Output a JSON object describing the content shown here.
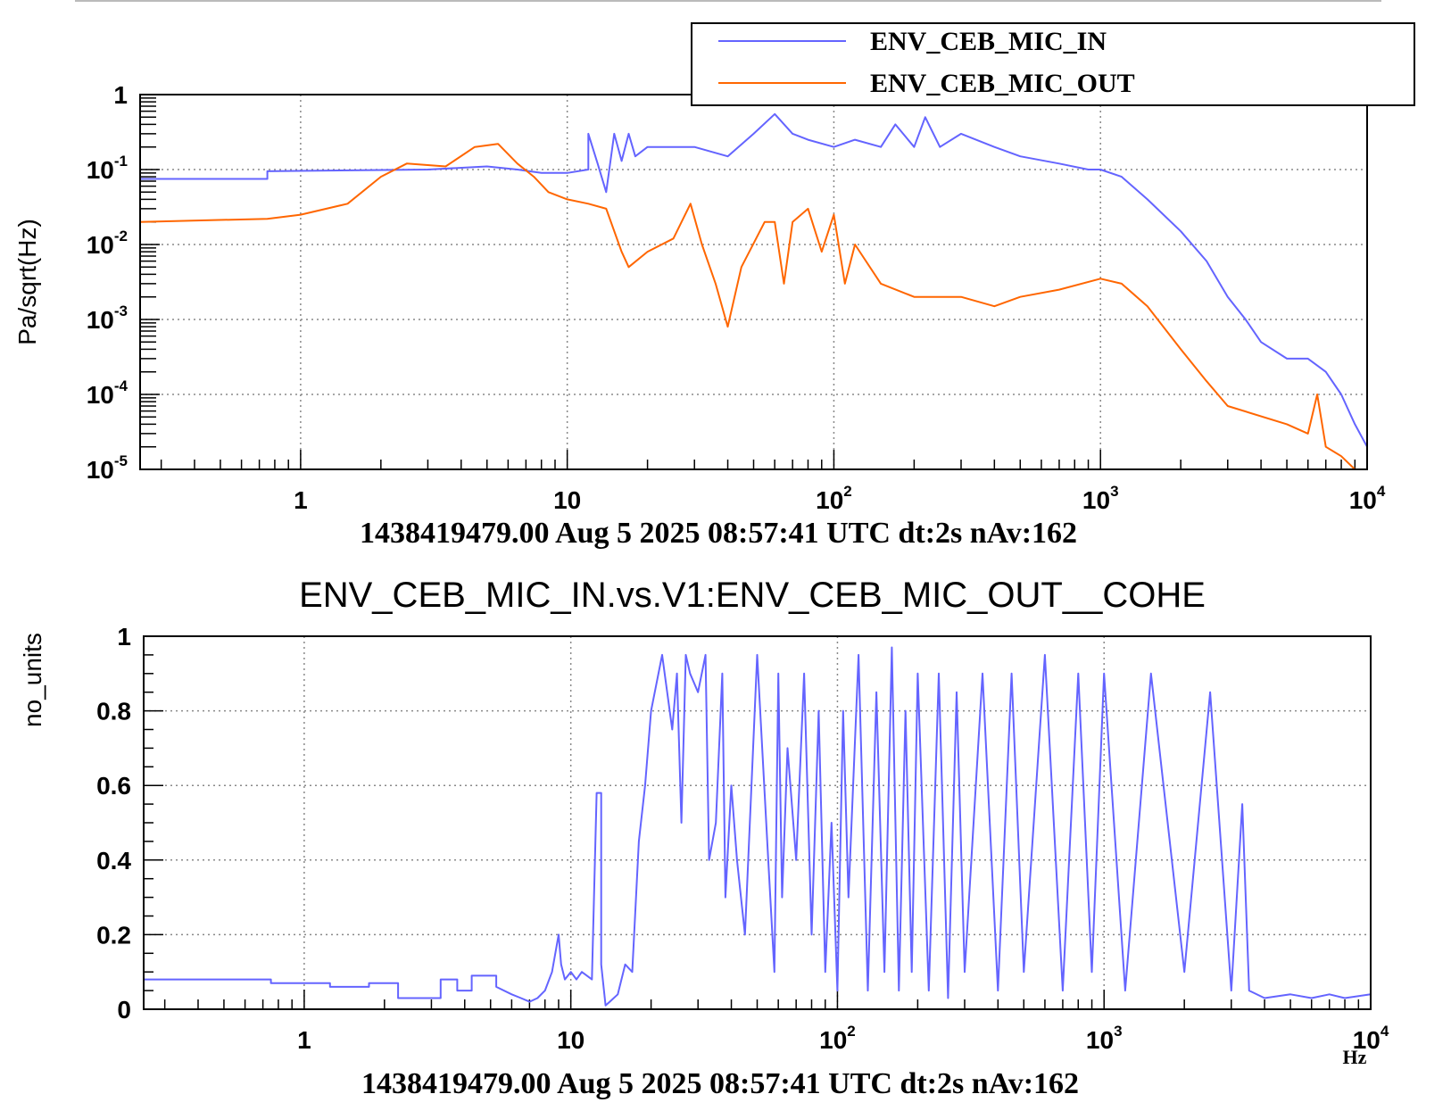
{
  "colors": {
    "series_in": "#6464ff",
    "series_out": "#ff6600",
    "grid": "#888888",
    "axis": "#000000"
  },
  "chart_data": [
    {
      "type": "line",
      "xscale": "log",
      "yscale": "log",
      "xlim": [
        0.25,
        10000
      ],
      "ylim": [
        1e-05,
        1
      ],
      "grid": true,
      "legend_position": "top-right",
      "ylabel": "Pa/sqrt(Hz)",
      "xtick_labels": [
        {
          "value": 1,
          "base": "1",
          "exp": ""
        },
        {
          "value": 10,
          "base": "10",
          "exp": ""
        },
        {
          "value": 100,
          "base": "10",
          "exp": "2"
        },
        {
          "value": 1000,
          "base": "10",
          "exp": "3"
        },
        {
          "value": 10000,
          "base": "10",
          "exp": "4"
        }
      ],
      "ytick_labels": [
        {
          "value": 1,
          "base": "1",
          "exp": ""
        },
        {
          "value": 0.1,
          "base": "10",
          "exp": "-1"
        },
        {
          "value": 0.01,
          "base": "10",
          "exp": "-2"
        },
        {
          "value": 0.001,
          "base": "10",
          "exp": "-3"
        },
        {
          "value": 0.0001,
          "base": "10",
          "exp": "-4"
        },
        {
          "value": 1e-05,
          "base": "10",
          "exp": "-5"
        }
      ],
      "footer": "1438419479.00 Aug 5 2025 08:57:41 UTC dt:2s nAv:162",
      "series": [
        {
          "name": "ENV_CEB_MIC_IN",
          "color": "#6464ff",
          "x": [
            0.25,
            0.75,
            0.75,
            3,
            5,
            6.5,
            8,
            10,
            12,
            12,
            13,
            14,
            15,
            16,
            17,
            18,
            20,
            25,
            30,
            40,
            50,
            60,
            70,
            80,
            100,
            120,
            150,
            170,
            200,
            220,
            250,
            300,
            400,
            500,
            700,
            900,
            1000,
            1200,
            1500,
            2000,
            2500,
            3000,
            3500,
            4000,
            5000,
            6000,
            7000,
            8000,
            9000,
            10000
          ],
          "y": [
            0.075,
            0.075,
            0.095,
            0.1,
            0.11,
            0.1,
            0.09,
            0.09,
            0.1,
            0.3,
            0.12,
            0.05,
            0.3,
            0.13,
            0.3,
            0.15,
            0.2,
            0.2,
            0.2,
            0.15,
            0.3,
            0.55,
            0.3,
            0.25,
            0.2,
            0.25,
            0.2,
            0.4,
            0.2,
            0.5,
            0.2,
            0.3,
            0.2,
            0.15,
            0.12,
            0.1,
            0.1,
            0.08,
            0.04,
            0.015,
            0.006,
            0.002,
            0.001,
            0.0005,
            0.0003,
            0.0003,
            0.0002,
            0.0001,
            4e-05,
            2e-05
          ]
        },
        {
          "name": "ENV_CEB_MIC_OUT",
          "color": "#ff6600",
          "x": [
            0.25,
            0.75,
            1,
            1.5,
            2,
            2.5,
            3.5,
            4.5,
            5.5,
            6.5,
            7.5,
            8.5,
            10,
            12,
            14,
            16,
            17,
            20,
            25,
            29,
            32,
            36,
            40,
            45,
            55,
            60,
            65,
            70,
            80,
            90,
            100,
            110,
            120,
            150,
            200,
            300,
            400,
            500,
            700,
            1000,
            1200,
            1500,
            2000,
            2500,
            3000,
            5000,
            6000,
            6500,
            7000,
            8000,
            9000
          ],
          "y": [
            0.02,
            0.022,
            0.025,
            0.035,
            0.08,
            0.12,
            0.11,
            0.2,
            0.22,
            0.12,
            0.08,
            0.05,
            0.04,
            0.035,
            0.03,
            0.008,
            0.005,
            0.008,
            0.012,
            0.035,
            0.01,
            0.003,
            0.0008,
            0.005,
            0.02,
            0.02,
            0.003,
            0.02,
            0.03,
            0.008,
            0.025,
            0.003,
            0.01,
            0.003,
            0.002,
            0.002,
            0.0015,
            0.002,
            0.0025,
            0.0035,
            0.003,
            0.0015,
            0.0004,
            0.00015,
            7e-05,
            4e-05,
            3e-05,
            0.0001,
            2e-05,
            1.5e-05,
            1e-05
          ]
        }
      ]
    },
    {
      "type": "line",
      "xscale": "log",
      "yscale": "linear",
      "xlim": [
        0.25,
        10000
      ],
      "ylim": [
        0,
        1
      ],
      "grid": true,
      "title": "ENV_CEB_MIC_IN.vs.V1:ENV_CEB_MIC_OUT__COHE",
      "ylabel": "no_units",
      "xunit": "Hz",
      "xtick_labels": [
        {
          "value": 1,
          "base": "1",
          "exp": ""
        },
        {
          "value": 10,
          "base": "10",
          "exp": ""
        },
        {
          "value": 100,
          "base": "10",
          "exp": "2"
        },
        {
          "value": 1000,
          "base": "10",
          "exp": "3"
        },
        {
          "value": 10000,
          "base": "10",
          "exp": "4"
        }
      ],
      "ytick_labels": [
        "0",
        "0.2",
        "0.4",
        "0.6",
        "0.8",
        "1"
      ],
      "footer": "1438419479.00 Aug 5 2025 08:57:41 UTC dt:2s nAv:162",
      "series": [
        {
          "name": "",
          "color": "#6464ff",
          "x": [
            0.25,
            0.75,
            0.75,
            1.25,
            1.25,
            1.75,
            1.75,
            2.25,
            2.25,
            3.25,
            3.25,
            3.75,
            3.75,
            4.25,
            4.25,
            5.25,
            5.25,
            6,
            6.5,
            7,
            7.5,
            8,
            8.5,
            9,
            9.2,
            9.5,
            10,
            10.5,
            11,
            12,
            12.5,
            13,
            13,
            13.5,
            14,
            15,
            16,
            17,
            18,
            19,
            20,
            22,
            24,
            25,
            26,
            27,
            28,
            30,
            32,
            33,
            35,
            37,
            38,
            40,
            42,
            45,
            50,
            55,
            58,
            60,
            62,
            65,
            70,
            75,
            80,
            85,
            90,
            95,
            100,
            105,
            110,
            120,
            130,
            140,
            150,
            160,
            170,
            180,
            190,
            200,
            220,
            240,
            260,
            280,
            300,
            350,
            400,
            450,
            500,
            600,
            700,
            800,
            900,
            1000,
            1200,
            1500,
            2000,
            2500,
            3000,
            3300,
            3500,
            4000,
            5000,
            6000,
            7000,
            8000,
            10000
          ],
          "y": [
            0.08,
            0.08,
            0.07,
            0.07,
            0.06,
            0.06,
            0.07,
            0.07,
            0.03,
            0.03,
            0.08,
            0.08,
            0.05,
            0.05,
            0.09,
            0.09,
            0.06,
            0.04,
            0.03,
            0.02,
            0.03,
            0.05,
            0.1,
            0.2,
            0.12,
            0.08,
            0.1,
            0.08,
            0.1,
            0.08,
            0.58,
            0.58,
            0.12,
            0.01,
            0.02,
            0.04,
            0.12,
            0.1,
            0.45,
            0.6,
            0.8,
            0.95,
            0.75,
            0.9,
            0.5,
            0.95,
            0.9,
            0.85,
            0.95,
            0.4,
            0.5,
            0.9,
            0.3,
            0.6,
            0.4,
            0.2,
            0.95,
            0.4,
            0.1,
            0.9,
            0.3,
            0.7,
            0.4,
            0.9,
            0.2,
            0.8,
            0.1,
            0.5,
            0.05,
            0.8,
            0.3,
            0.95,
            0.05,
            0.85,
            0.1,
            0.97,
            0.05,
            0.8,
            0.1,
            0.9,
            0.05,
            0.9,
            0.03,
            0.85,
            0.1,
            0.9,
            0.05,
            0.9,
            0.1,
            0.95,
            0.05,
            0.9,
            0.1,
            0.9,
            0.05,
            0.9,
            0.1,
            0.85,
            0.05,
            0.55,
            0.05,
            0.03,
            0.04,
            0.03,
            0.04,
            0.03,
            0.04
          ]
        }
      ]
    }
  ]
}
